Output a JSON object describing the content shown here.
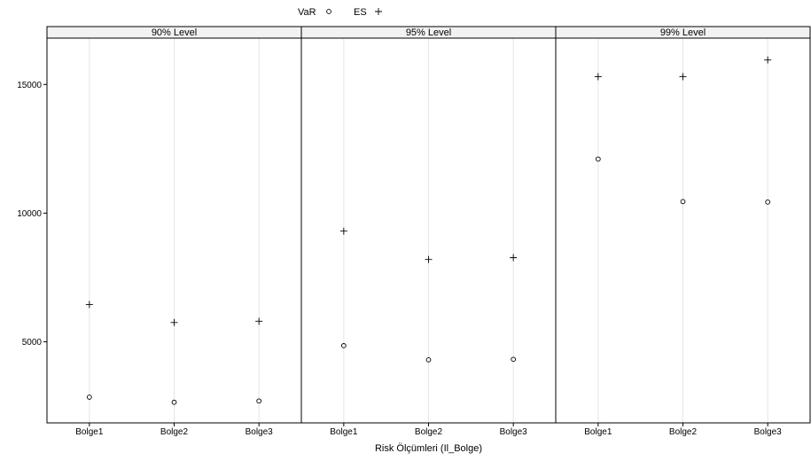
{
  "chart_data": {
    "type": "scatter",
    "panels": [
      "90% Level",
      "95% Level",
      "99% Level"
    ],
    "categories": [
      "Bolge1",
      "Bolge2",
      "Bolge3"
    ],
    "series": [
      {
        "name": "VaR",
        "marker": "circle",
        "values": [
          [
            2850,
            2650,
            2700
          ],
          [
            4850,
            4300,
            4320
          ],
          [
            12100,
            10450,
            10430
          ]
        ]
      },
      {
        "name": "ES",
        "marker": "plus",
        "values": [
          [
            6450,
            5750,
            5800
          ],
          [
            9300,
            8200,
            8270
          ],
          [
            15300,
            15300,
            15950
          ]
        ]
      }
    ],
    "xlabel": "Risk Ölçümleri (Il_Bolge)",
    "ylabel": "",
    "ylim": [
      1850,
      16800
    ],
    "yticks": [
      5000,
      10000,
      15000
    ],
    "legend_position": "top",
    "grid": true,
    "colors": {
      "strip_bg": "#f2f2f2",
      "grid": "#e6e6e6",
      "border": "#000000"
    }
  }
}
